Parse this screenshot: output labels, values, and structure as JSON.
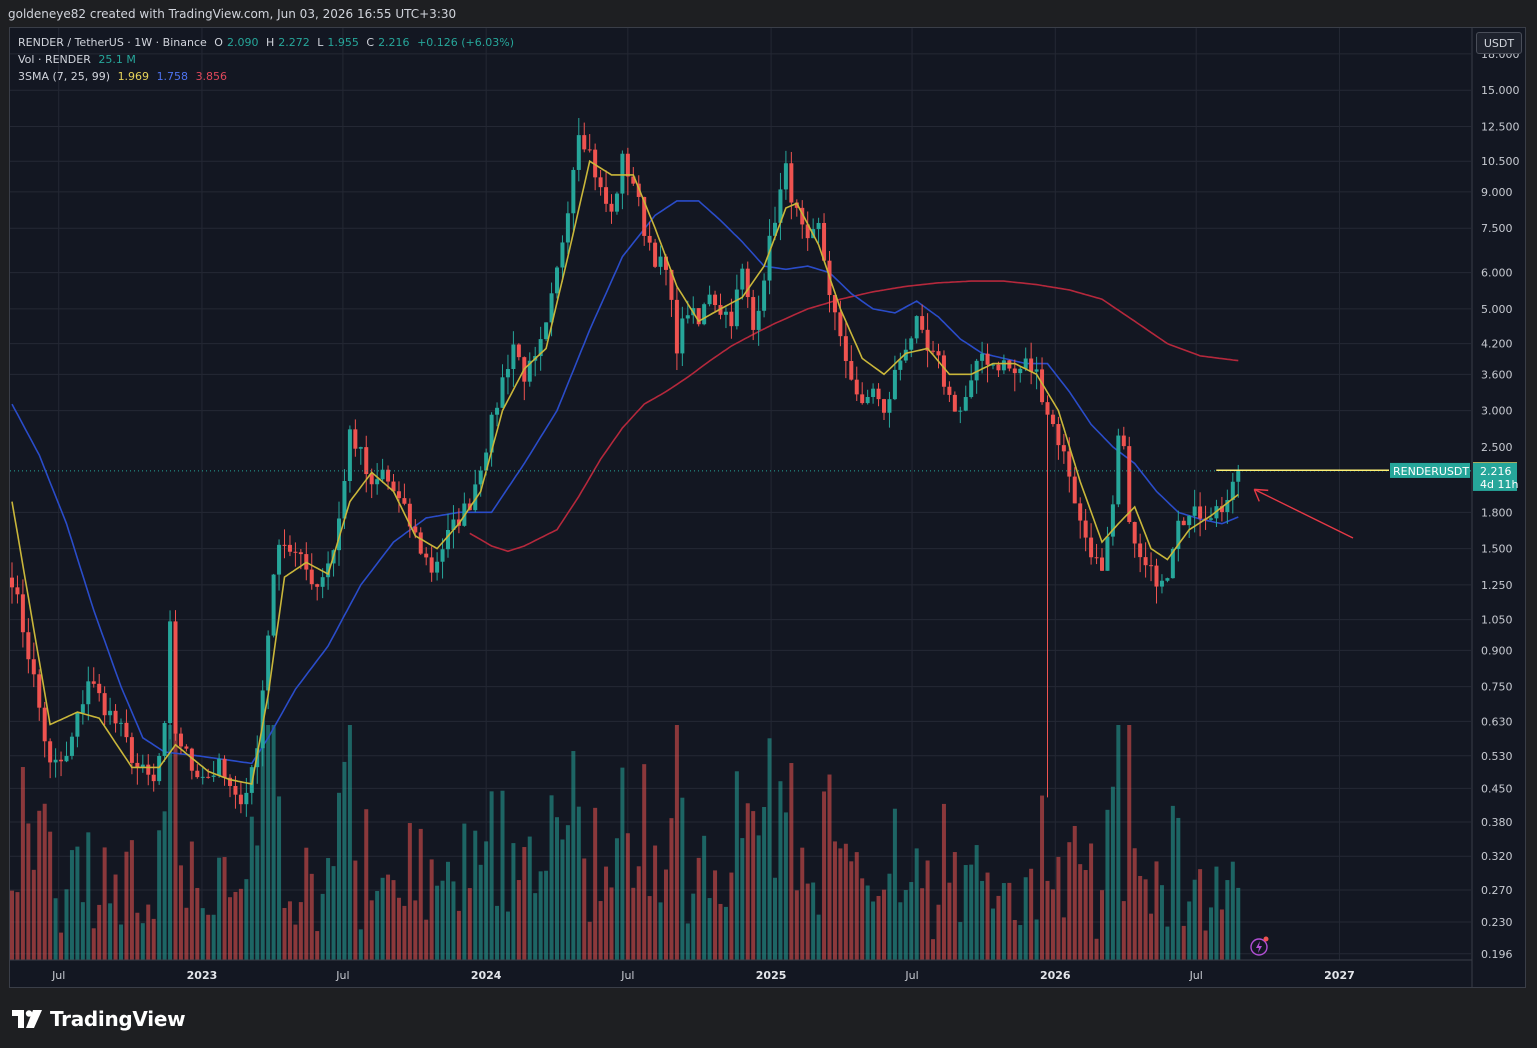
{
  "caption": "goldeneye82 created with TradingView.com, Jun 03, 2026 16:55 UTC+3:30",
  "legend": {
    "symbol": "RENDER / TetherUS · 1W · Binance",
    "open_label": "O",
    "open": "2.090",
    "high_label": "H",
    "high": "2.272",
    "low_label": "L",
    "low": "1.955",
    "close_label": "C",
    "close": "2.216",
    "change": "+0.126 (+6.03%)",
    "vol_label": "Vol · RENDER",
    "vol_value": "25.1 M",
    "sma_label": "3SMA (7, 25, 99)",
    "sma7": "1.969",
    "sma25": "1.758",
    "sma99": "3.856"
  },
  "currency": "USDT",
  "price_tags": {
    "symbol_tag": "RENDERUSDT",
    "last_price": "2.216",
    "countdown": "4d 11h",
    "line_price": "2.223",
    "hidden_tick": "2.500"
  },
  "brand": "TradingView",
  "colors": {
    "up": "#26a69a",
    "down": "#ef5350",
    "sma7": "#c9b63a",
    "sma25": "#2a4cc9",
    "sma99": "#b5283c",
    "hline": "#fff176",
    "arrow": "#e63946"
  },
  "chart_data": {
    "type": "candlestick",
    "scale": "log",
    "ylim": [
      0.19,
      20.5
    ],
    "y_ticks": [
      18.0,
      15.0,
      12.5,
      10.5,
      9.0,
      7.5,
      6.0,
      5.0,
      4.2,
      3.6,
      3.0,
      1.8,
      1.5,
      1.25,
      1.05,
      0.9,
      0.75,
      0.63,
      0.53,
      0.45,
      0.38,
      0.32,
      0.27,
      0.23,
      0.196
    ],
    "y_tick_labels": [
      "18.000",
      "15.000",
      "12.500",
      "10.500",
      "9.000",
      "7.500",
      "6.000",
      "5.000",
      "4.200",
      "3.600",
      "3.000",
      "1.800",
      "1.500",
      "1.250",
      "1.050",
      "0.900",
      "0.750",
      "0.630",
      "0.530",
      "0.450",
      "0.380",
      "0.320",
      "0.270",
      "0.230",
      "0.196"
    ],
    "x_ticks": [
      {
        "label": "Jul",
        "year": false,
        "date": "2022-07"
      },
      {
        "label": "2023",
        "year": true,
        "date": "2023-01"
      },
      {
        "label": "Jul",
        "year": false,
        "date": "2023-07"
      },
      {
        "label": "2024",
        "year": true,
        "date": "2024-01"
      },
      {
        "label": "Jul",
        "year": false,
        "date": "2024-07"
      },
      {
        "label": "2025",
        "year": true,
        "date": "2025-01"
      },
      {
        "label": "Jul",
        "year": false,
        "date": "2025-07"
      },
      {
        "label": "2026",
        "year": true,
        "date": "2026-01"
      },
      {
        "label": "Jul",
        "year": false,
        "date": "2026-07"
      },
      {
        "label": "2027",
        "year": true,
        "date": "2027-01"
      }
    ],
    "timeframe": "1W",
    "start_week": "2022-05-02",
    "close_path": [
      [
        0,
        1.3
      ],
      [
        4,
        0.78
      ],
      [
        7,
        0.5
      ],
      [
        10,
        0.52
      ],
      [
        14,
        0.78
      ],
      [
        17,
        0.68
      ],
      [
        20,
        0.6
      ],
      [
        23,
        0.5
      ],
      [
        26,
        0.46
      ],
      [
        28,
        0.6
      ],
      [
        29,
        1.0
      ],
      [
        30,
        0.6
      ],
      [
        33,
        0.5
      ],
      [
        36,
        0.48
      ],
      [
        38,
        0.5
      ],
      [
        41,
        0.42
      ],
      [
        43,
        0.45
      ],
      [
        45,
        0.55
      ],
      [
        47,
        1.0
      ],
      [
        49,
        1.6
      ],
      [
        51,
        1.5
      ],
      [
        53,
        1.4
      ],
      [
        56,
        1.25
      ],
      [
        59,
        1.5
      ],
      [
        61,
        2.1
      ],
      [
        62,
        2.7
      ],
      [
        64,
        2.4
      ],
      [
        66,
        2.0
      ],
      [
        68,
        2.2
      ],
      [
        70,
        2.0
      ],
      [
        72,
        1.8
      ],
      [
        75,
        1.5
      ],
      [
        77,
        1.35
      ],
      [
        80,
        1.6
      ],
      [
        82,
        1.75
      ],
      [
        84,
        1.9
      ],
      [
        86,
        2.3
      ],
      [
        88,
        2.8
      ],
      [
        90,
        3.5
      ],
      [
        92,
        4.2
      ],
      [
        94,
        3.6
      ],
      [
        96,
        3.8
      ],
      [
        98,
        4.5
      ],
      [
        100,
        6.0
      ],
      [
        102,
        8.5
      ],
      [
        104,
        12.5
      ],
      [
        106,
        11.0
      ],
      [
        108,
        9.0
      ],
      [
        110,
        8.0
      ],
      [
        112,
        10.5
      ],
      [
        114,
        9.5
      ],
      [
        116,
        7.5
      ],
      [
        118,
        6.5
      ],
      [
        120,
        6.0
      ],
      [
        122,
        4.2
      ],
      [
        124,
        5.0
      ],
      [
        126,
        4.6
      ],
      [
        128,
        5.5
      ],
      [
        130,
        5.0
      ],
      [
        132,
        4.8
      ],
      [
        134,
        6.0
      ],
      [
        136,
        4.5
      ],
      [
        138,
        6.0
      ],
      [
        140,
        8.0
      ],
      [
        142,
        10.0
      ],
      [
        144,
        8.0
      ],
      [
        146,
        6.8
      ],
      [
        148,
        7.5
      ],
      [
        150,
        5.5
      ],
      [
        152,
        4.2
      ],
      [
        154,
        3.6
      ],
      [
        156,
        3.0
      ],
      [
        158,
        3.4
      ],
      [
        160,
        2.9
      ],
      [
        162,
        3.6
      ],
      [
        164,
        4.2
      ],
      [
        166,
        4.6
      ],
      [
        168,
        4.0
      ],
      [
        170,
        3.8
      ],
      [
        172,
        3.2
      ],
      [
        174,
        3.0
      ],
      [
        176,
        3.4
      ],
      [
        178,
        4.0
      ],
      [
        180,
        3.8
      ],
      [
        182,
        3.8
      ],
      [
        184,
        3.6
      ],
      [
        186,
        3.8
      ],
      [
        188,
        3.6
      ],
      [
        190,
        3.0
      ],
      [
        192,
        2.6
      ],
      [
        194,
        2.2
      ],
      [
        196,
        1.7
      ],
      [
        198,
        1.5
      ],
      [
        200,
        1.3
      ],
      [
        202,
        1.8
      ],
      [
        203,
        2.6
      ],
      [
        204,
        2.4
      ],
      [
        205,
        1.8
      ],
      [
        206,
        1.5
      ],
      [
        208,
        1.35
      ],
      [
        210,
        1.3
      ],
      [
        212,
        1.35
      ],
      [
        214,
        1.8
      ],
      [
        216,
        1.75
      ],
      [
        218,
        1.8
      ],
      [
        220,
        1.8
      ],
      [
        222,
        1.85
      ],
      [
        224,
        2.0
      ],
      [
        225,
        2.216
      ]
    ],
    "sma7_path": [
      [
        0,
        1.9
      ],
      [
        4,
        1.0
      ],
      [
        7,
        0.62
      ],
      [
        12,
        0.66
      ],
      [
        16,
        0.64
      ],
      [
        22,
        0.5
      ],
      [
        27,
        0.5
      ],
      [
        30,
        0.56
      ],
      [
        36,
        0.49
      ],
      [
        40,
        0.47
      ],
      [
        44,
        0.46
      ],
      [
        47,
        0.72
      ],
      [
        50,
        1.3
      ],
      [
        54,
        1.4
      ],
      [
        58,
        1.32
      ],
      [
        62,
        1.9
      ],
      [
        66,
        2.2
      ],
      [
        70,
        2.0
      ],
      [
        74,
        1.6
      ],
      [
        78,
        1.5
      ],
      [
        82,
        1.7
      ],
      [
        86,
        2.0
      ],
      [
        90,
        3.0
      ],
      [
        94,
        3.7
      ],
      [
        98,
        4.1
      ],
      [
        102,
        6.5
      ],
      [
        106,
        10.5
      ],
      [
        110,
        9.8
      ],
      [
        114,
        9.8
      ],
      [
        118,
        7.5
      ],
      [
        122,
        5.6
      ],
      [
        126,
        4.7
      ],
      [
        130,
        5.0
      ],
      [
        134,
        5.3
      ],
      [
        138,
        6.2
      ],
      [
        142,
        8.3
      ],
      [
        144,
        8.5
      ],
      [
        148,
        6.9
      ],
      [
        152,
        5.0
      ],
      [
        156,
        3.9
      ],
      [
        160,
        3.6
      ],
      [
        164,
        4.0
      ],
      [
        168,
        4.1
      ],
      [
        172,
        3.6
      ],
      [
        176,
        3.6
      ],
      [
        180,
        3.8
      ],
      [
        184,
        3.8
      ],
      [
        188,
        3.6
      ],
      [
        192,
        3.0
      ],
      [
        196,
        2.1
      ],
      [
        200,
        1.55
      ],
      [
        203,
        1.7
      ],
      [
        206,
        1.85
      ],
      [
        209,
        1.5
      ],
      [
        212,
        1.42
      ],
      [
        216,
        1.65
      ],
      [
        220,
        1.77
      ],
      [
        225,
        1.969
      ]
    ],
    "sma25_path": [
      [
        0,
        3.1
      ],
      [
        5,
        2.4
      ],
      [
        10,
        1.7
      ],
      [
        15,
        1.1
      ],
      [
        20,
        0.75
      ],
      [
        24,
        0.58
      ],
      [
        28,
        0.54
      ],
      [
        34,
        0.53
      ],
      [
        39,
        0.52
      ],
      [
        44,
        0.51
      ],
      [
        47,
        0.58
      ],
      [
        52,
        0.74
      ],
      [
        58,
        0.92
      ],
      [
        64,
        1.25
      ],
      [
        70,
        1.55
      ],
      [
        76,
        1.75
      ],
      [
        82,
        1.8
      ],
      [
        88,
        1.8
      ],
      [
        94,
        2.3
      ],
      [
        100,
        3.0
      ],
      [
        106,
        4.5
      ],
      [
        112,
        6.5
      ],
      [
        118,
        8.0
      ],
      [
        122,
        8.6
      ],
      [
        126,
        8.6
      ],
      [
        130,
        7.8
      ],
      [
        134,
        7.0
      ],
      [
        138,
        6.2
      ],
      [
        142,
        6.1
      ],
      [
        146,
        6.2
      ],
      [
        150,
        6.0
      ],
      [
        154,
        5.4
      ],
      [
        158,
        5.0
      ],
      [
        162,
        4.9
      ],
      [
        166,
        5.2
      ],
      [
        170,
        4.8
      ],
      [
        174,
        4.3
      ],
      [
        178,
        4.0
      ],
      [
        182,
        3.9
      ],
      [
        186,
        3.8
      ],
      [
        190,
        3.8
      ],
      [
        194,
        3.3
      ],
      [
        198,
        2.8
      ],
      [
        202,
        2.5
      ],
      [
        206,
        2.3
      ],
      [
        210,
        2.0
      ],
      [
        214,
        1.8
      ],
      [
        218,
        1.74
      ],
      [
        222,
        1.7
      ],
      [
        225,
        1.758
      ]
    ],
    "sma99_path": [
      [
        84,
        1.62
      ],
      [
        88,
        1.52
      ],
      [
        91,
        1.48
      ],
      [
        94,
        1.52
      ],
      [
        100,
        1.65
      ],
      [
        104,
        1.95
      ],
      [
        108,
        2.35
      ],
      [
        112,
        2.75
      ],
      [
        116,
        3.1
      ],
      [
        120,
        3.3
      ],
      [
        124,
        3.55
      ],
      [
        128,
        3.85
      ],
      [
        132,
        4.15
      ],
      [
        136,
        4.4
      ],
      [
        140,
        4.65
      ],
      [
        146,
        5.0
      ],
      [
        152,
        5.25
      ],
      [
        158,
        5.45
      ],
      [
        164,
        5.6
      ],
      [
        170,
        5.7
      ],
      [
        176,
        5.75
      ],
      [
        182,
        5.75
      ],
      [
        188,
        5.65
      ],
      [
        194,
        5.5
      ],
      [
        200,
        5.25
      ],
      [
        206,
        4.7
      ],
      [
        212,
        4.2
      ],
      [
        218,
        3.95
      ],
      [
        225,
        3.856
      ]
    ],
    "drops": [
      [
        190,
        0.43
      ]
    ],
    "volume": {
      "max_millions": 180,
      "note": "weekly bars coloured by candle direction; values in millions RENDER",
      "last_value_millions": 25.1
    }
  }
}
